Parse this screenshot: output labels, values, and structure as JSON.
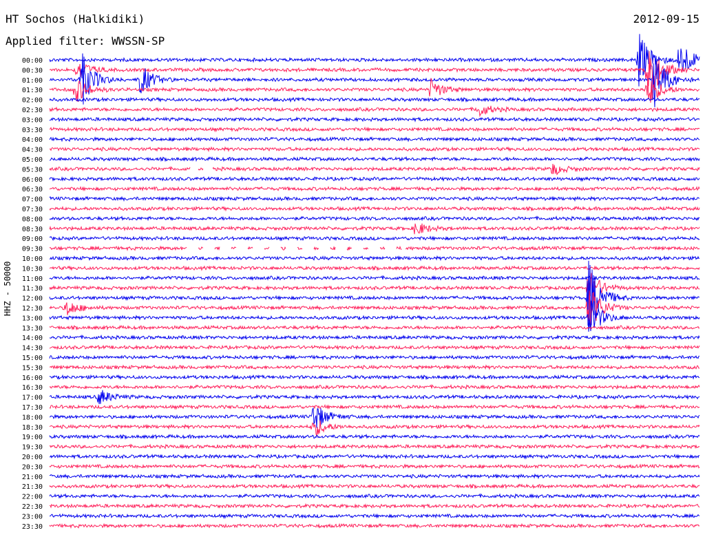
{
  "header": {
    "station": "HT Sochos (Halkidiki)",
    "date": "2012-09-15",
    "filter_prefix": "Applied filter:",
    "filter_name": "WWSSN-SP"
  },
  "axis": {
    "ylabel": "HHZ - 50000"
  },
  "colors": {
    "even_row": "#0000ee",
    "odd_row": "#ff1f5a"
  },
  "chart_data": {
    "type": "line",
    "title": "HT Sochos (Halkidiki)",
    "subtitle": "Applied filter: WWSSN-SP",
    "ylabel": "HHZ - 50000",
    "rows": [
      "00:00",
      "00:30",
      "01:00",
      "01:30",
      "02:00",
      "02:30",
      "03:00",
      "03:30",
      "04:00",
      "04:30",
      "05:00",
      "05:30",
      "06:00",
      "06:30",
      "07:00",
      "07:30",
      "08:00",
      "08:30",
      "09:00",
      "09:30",
      "10:00",
      "10:30",
      "11:00",
      "11:30",
      "12:00",
      "12:30",
      "13:00",
      "13:30",
      "14:00",
      "14:30",
      "15:00",
      "15:30",
      "16:00",
      "16:30",
      "17:00",
      "17:30",
      "18:00",
      "18:30",
      "19:00",
      "19:30",
      "20:00",
      "20:30",
      "21:00",
      "21:30",
      "22:00",
      "22:30",
      "23:00",
      "23:30"
    ],
    "row_colors": [
      "blue",
      "red"
    ],
    "x_range_minutes": [
      0,
      30
    ],
    "events": [
      {
        "row": "00:00",
        "minute": 27.2,
        "amplitude": 3.2
      },
      {
        "row": "00:00",
        "minute": 29.1,
        "amplitude": 2.5
      },
      {
        "row": "00:30",
        "minute": 27.6,
        "amplitude": 4.5
      },
      {
        "row": "00:30",
        "minute": 1.3,
        "amplitude": 1.2
      },
      {
        "row": "01:00",
        "minute": 1.5,
        "amplitude": 3.0
      },
      {
        "row": "01:00",
        "minute": 4.2,
        "amplitude": 1.8
      },
      {
        "row": "01:00",
        "minute": 27.9,
        "amplitude": 3.5
      },
      {
        "row": "01:30",
        "minute": 1.2,
        "amplitude": 1.5
      },
      {
        "row": "01:30",
        "minute": 17.6,
        "amplitude": 1.2
      },
      {
        "row": "01:30",
        "minute": 27.6,
        "amplitude": 2.0
      },
      {
        "row": "02:30",
        "minute": 19.8,
        "amplitude": 0.8
      },
      {
        "row": "11:30",
        "minute": 24.9,
        "amplitude": 2.0
      },
      {
        "row": "12:00",
        "minute": 24.9,
        "amplitude": 4.5
      },
      {
        "row": "12:30",
        "minute": 24.9,
        "amplitude": 3.0
      },
      {
        "row": "13:00",
        "minute": 24.9,
        "amplitude": 2.5
      },
      {
        "row": "12:30",
        "minute": 0.8,
        "amplitude": 0.9
      },
      {
        "row": "17:00",
        "minute": 2.3,
        "amplitude": 0.9
      },
      {
        "row": "18:00",
        "minute": 12.2,
        "amplitude": 1.8
      },
      {
        "row": "18:30",
        "minute": 12.2,
        "amplitude": 1.2
      },
      {
        "row": "08:30",
        "minute": 16.9,
        "amplitude": 0.8
      },
      {
        "row": "05:30",
        "minute": 23.2,
        "amplitude": 0.7
      }
    ],
    "gaps": [
      {
        "row": "09:30",
        "start_minute": 6.3,
        "end_minute": 16.4
      },
      {
        "row": "05:30",
        "start_minute": 6.5,
        "end_minute": 7.5
      }
    ],
    "grid": false
  }
}
